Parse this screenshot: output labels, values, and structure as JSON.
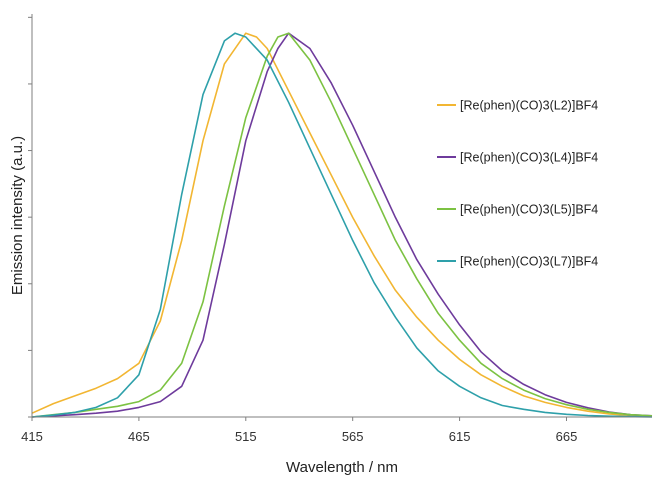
{
  "chart_data": {
    "type": "line",
    "title": "",
    "xlabel": "Wavelength / nm",
    "ylabel": "Emission intensity (a.u.)",
    "xlim": [
      415,
      705
    ],
    "ylim": [
      0,
      1.05
    ],
    "x_ticks": [
      415,
      465,
      515,
      565,
      615,
      665
    ],
    "grid": false,
    "legend_position": "right",
    "series": [
      {
        "name": "[Re(phen)(CO)3(L2)]BF4",
        "color": "#F2B632",
        "x": [
          415,
          425,
          435,
          445,
          455,
          465,
          475,
          485,
          495,
          505,
          515,
          520,
          525,
          535,
          545,
          555,
          565,
          575,
          585,
          595,
          605,
          615,
          625,
          635,
          645,
          655,
          665,
          675,
          685,
          695,
          705
        ],
        "y": [
          0.01,
          0.035,
          0.055,
          0.075,
          0.1,
          0.14,
          0.25,
          0.46,
          0.72,
          0.92,
          1.0,
          0.99,
          0.96,
          0.85,
          0.74,
          0.63,
          0.52,
          0.42,
          0.33,
          0.26,
          0.2,
          0.15,
          0.11,
          0.08,
          0.055,
          0.038,
          0.025,
          0.015,
          0.008,
          0.004,
          0.002
        ]
      },
      {
        "name": "[Re(phen)(CO)3(L4)]BF4",
        "color": "#6E3B9C",
        "x": [
          415,
          425,
          435,
          445,
          455,
          465,
          475,
          485,
          495,
          505,
          515,
          525,
          530,
          535,
          545,
          555,
          565,
          575,
          585,
          595,
          605,
          615,
          625,
          635,
          645,
          655,
          665,
          675,
          685,
          695,
          705
        ],
        "y": [
          0.0,
          0.003,
          0.006,
          0.01,
          0.015,
          0.025,
          0.04,
          0.08,
          0.2,
          0.45,
          0.72,
          0.9,
          0.96,
          1.0,
          0.96,
          0.87,
          0.76,
          0.64,
          0.52,
          0.41,
          0.32,
          0.24,
          0.17,
          0.12,
          0.085,
          0.058,
          0.038,
          0.024,
          0.013,
          0.006,
          0.003
        ]
      },
      {
        "name": "[Re(phen)(CO)3(L5)]BF4",
        "color": "#7CC242",
        "x": [
          415,
          425,
          435,
          445,
          455,
          465,
          475,
          485,
          495,
          505,
          515,
          525,
          530,
          535,
          545,
          555,
          565,
          575,
          585,
          595,
          605,
          615,
          625,
          635,
          645,
          655,
          665,
          675,
          685,
          695,
          705
        ],
        "y": [
          0.0,
          0.006,
          0.012,
          0.02,
          0.028,
          0.04,
          0.07,
          0.14,
          0.3,
          0.55,
          0.78,
          0.94,
          0.99,
          1.0,
          0.93,
          0.82,
          0.7,
          0.58,
          0.46,
          0.36,
          0.27,
          0.2,
          0.14,
          0.1,
          0.07,
          0.048,
          0.032,
          0.02,
          0.012,
          0.006,
          0.003
        ]
      },
      {
        "name": "[Re(phen)(CO)3(L7)]BF4",
        "color": "#2EA0AA",
        "x": [
          415,
          425,
          435,
          445,
          455,
          465,
          475,
          485,
          495,
          505,
          510,
          515,
          525,
          535,
          545,
          555,
          565,
          575,
          585,
          595,
          605,
          615,
          625,
          635,
          645,
          655,
          665,
          675,
          685,
          695,
          705
        ],
        "y": [
          0.0,
          0.005,
          0.012,
          0.025,
          0.05,
          0.11,
          0.28,
          0.58,
          0.84,
          0.98,
          1.0,
          0.99,
          0.93,
          0.82,
          0.7,
          0.58,
          0.46,
          0.35,
          0.26,
          0.18,
          0.12,
          0.08,
          0.05,
          0.03,
          0.02,
          0.012,
          0.007,
          0.004,
          0.002,
          0.001,
          0.0
        ]
      }
    ]
  }
}
